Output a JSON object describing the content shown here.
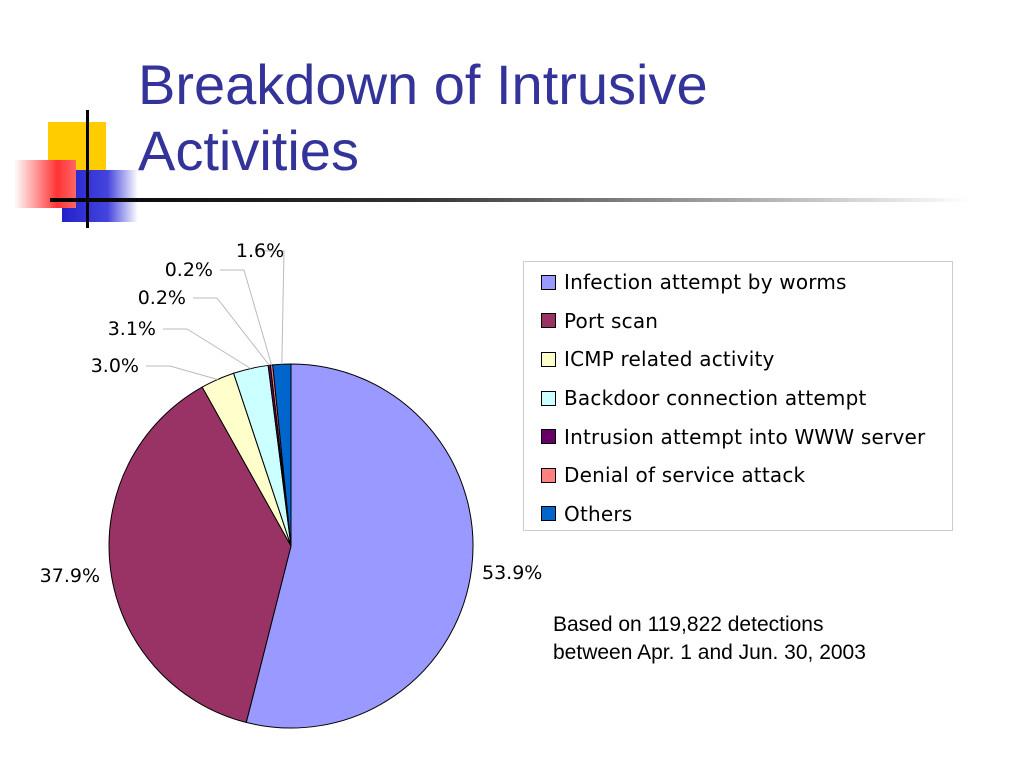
{
  "slide": {
    "title_line1": "Breakdown of Intrusive",
    "title_line2": "Activities",
    "title_color": "#333399",
    "note_line1": "Based on 119,822 detections",
    "note_line2": "between Apr. 1 and Jun. 30, 2003"
  },
  "chart_data": {
    "type": "pie",
    "title": "",
    "start": "12 o'clock",
    "direction": "clockwise",
    "legend_position": "right",
    "categories": [
      "Infection attempt by worms",
      "Port scan",
      "ICMP related activity",
      "Backdoor connection attempt",
      "Intrusion attempt into WWW server",
      "Denial of service attack",
      "Others"
    ],
    "values": [
      53.9,
      37.9,
      3.0,
      3.1,
      0.2,
      0.2,
      1.6
    ],
    "labels": [
      "53.9%",
      "37.9%",
      "3.0%",
      "3.1%",
      "0.2%",
      "0.2%",
      "1.6%"
    ],
    "colors": [
      "#9999ff",
      "#993366",
      "#ffffcc",
      "#ccffff",
      "#660066",
      "#ff8080",
      "#0066cc"
    ]
  }
}
